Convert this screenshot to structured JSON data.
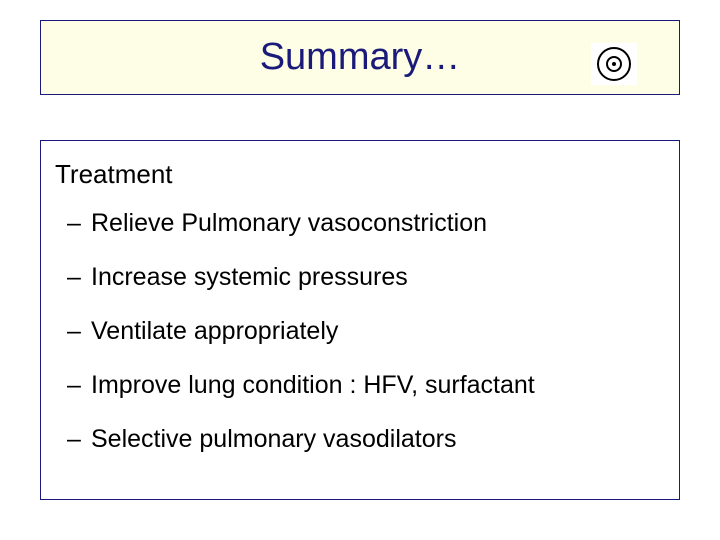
{
  "slide": {
    "title": "Summary…",
    "title_color": "#1a1a7a",
    "title_bg": "#fefde5",
    "title_fontsize": 38,
    "border_color": "#1a1a7a",
    "section_heading": "Treatment",
    "section_fontsize": 26,
    "bullet_fontsize": 25,
    "bullets": [
      "Relieve Pulmonary vasoconstriction",
      "Increase systemic pressures",
      "Ventilate appropriately",
      "Improve lung condition : HFV, surfactant",
      "Selective pulmonary vasodilators"
    ],
    "background_color": "#ffffff",
    "text_color": "#000000"
  }
}
